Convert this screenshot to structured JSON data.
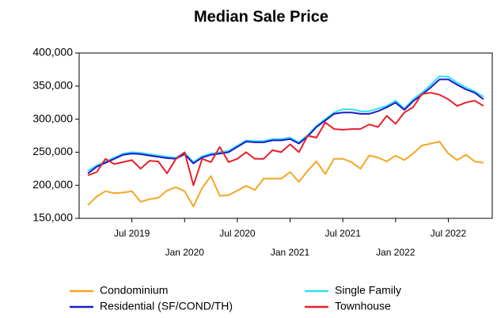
{
  "chart_data": {
    "type": "line",
    "title": "Median Sale Price",
    "x": [
      "2019-02",
      "2019-03",
      "2019-04",
      "2019-05",
      "2019-06",
      "2019-07",
      "2019-08",
      "2019-09",
      "2019-10",
      "2019-11",
      "2019-12",
      "2020-01",
      "2020-02",
      "2020-03",
      "2020-04",
      "2020-05",
      "2020-06",
      "2020-07",
      "2020-08",
      "2020-09",
      "2020-10",
      "2020-11",
      "2020-12",
      "2021-01",
      "2021-02",
      "2021-03",
      "2021-04",
      "2021-05",
      "2021-06",
      "2021-07",
      "2021-08",
      "2021-09",
      "2021-10",
      "2021-11",
      "2021-12",
      "2022-01",
      "2022-02",
      "2022-03",
      "2022-04",
      "2022-05",
      "2022-06",
      "2022-07",
      "2022-08",
      "2022-09",
      "2022-10",
      "2022-11"
    ],
    "xlim": [
      "2019-01",
      "2022-12"
    ],
    "xticks": [
      {
        "value": "2019-07",
        "label": "Jul 2019"
      },
      {
        "value": "2020-01",
        "label": "Jan 2020"
      },
      {
        "value": "2020-07",
        "label": "Jul 2020"
      },
      {
        "value": "2021-01",
        "label": "Jan 2021"
      },
      {
        "value": "2021-07",
        "label": "Jul 2021"
      },
      {
        "value": "2022-01",
        "label": "Jan 2022"
      },
      {
        "value": "2022-07",
        "label": "Jul 2022"
      }
    ],
    "ylim": [
      150000,
      400000
    ],
    "yticks": [
      {
        "value": 150000,
        "label": "150,000"
      },
      {
        "value": 200000,
        "label": "200,000"
      },
      {
        "value": 250000,
        "label": "250,000"
      },
      {
        "value": 300000,
        "label": "300,000"
      },
      {
        "value": 350000,
        "label": "350,000"
      },
      {
        "value": 400000,
        "label": "400,000"
      }
    ],
    "grid": false,
    "legend": "bottom",
    "series": [
      {
        "name": "Condominium",
        "color": "#f5a623",
        "values": [
          170000,
          183000,
          191000,
          188000,
          189000,
          191000,
          175000,
          179000,
          181000,
          192000,
          197000,
          191000,
          168000,
          196000,
          214000,
          184000,
          185000,
          192000,
          199000,
          193000,
          210000,
          210000,
          210000,
          220000,
          205000,
          222000,
          236000,
          217000,
          240000,
          240000,
          235000,
          225000,
          245000,
          242000,
          236000,
          245000,
          238000,
          248000,
          260000,
          263000,
          266000,
          248000,
          238000,
          246000,
          236000,
          234000
        ]
      },
      {
        "name": "Single Family",
        "color": "#33e0f0",
        "values": [
          222000,
          230000,
          236000,
          242000,
          248000,
          250000,
          249000,
          247000,
          245000,
          243000,
          242000,
          249000,
          235000,
          244000,
          248000,
          250000,
          252000,
          260000,
          268000,
          267000,
          267000,
          270000,
          270000,
          272000,
          265000,
          276000,
          290000,
          300000,
          310000,
          315000,
          315000,
          312000,
          312000,
          316000,
          320000,
          328000,
          316000,
          330000,
          340000,
          352000,
          365000,
          364000,
          355000,
          348000,
          342000,
          334000
        ]
      },
      {
        "name": "Residential (SF/COND/TH)",
        "color": "#1a1acc",
        "values": [
          218000,
          228000,
          234000,
          240000,
          246000,
          248000,
          247000,
          245000,
          243000,
          241000,
          240000,
          247000,
          233000,
          242000,
          246000,
          248000,
          250000,
          258000,
          266000,
          265000,
          265000,
          268000,
          268000,
          270000,
          263000,
          274000,
          288000,
          298000,
          308000,
          310000,
          310000,
          308000,
          308000,
          312000,
          318000,
          325000,
          314000,
          327000,
          337000,
          348000,
          360000,
          360000,
          352000,
          345000,
          340000,
          330000
        ]
      },
      {
        "name": "Townhouse",
        "color": "#e8202a",
        "values": [
          215000,
          220000,
          240000,
          232000,
          235000,
          238000,
          225000,
          237000,
          236000,
          218000,
          240000,
          250000,
          200000,
          240000,
          235000,
          258000,
          235000,
          240000,
          250000,
          240000,
          240000,
          253000,
          250000,
          262000,
          250000,
          275000,
          272000,
          295000,
          285000,
          284000,
          285000,
          285000,
          292000,
          288000,
          305000,
          293000,
          310000,
          318000,
          338000,
          340000,
          337000,
          330000,
          320000,
          325000,
          328000,
          320000
        ]
      }
    ]
  }
}
